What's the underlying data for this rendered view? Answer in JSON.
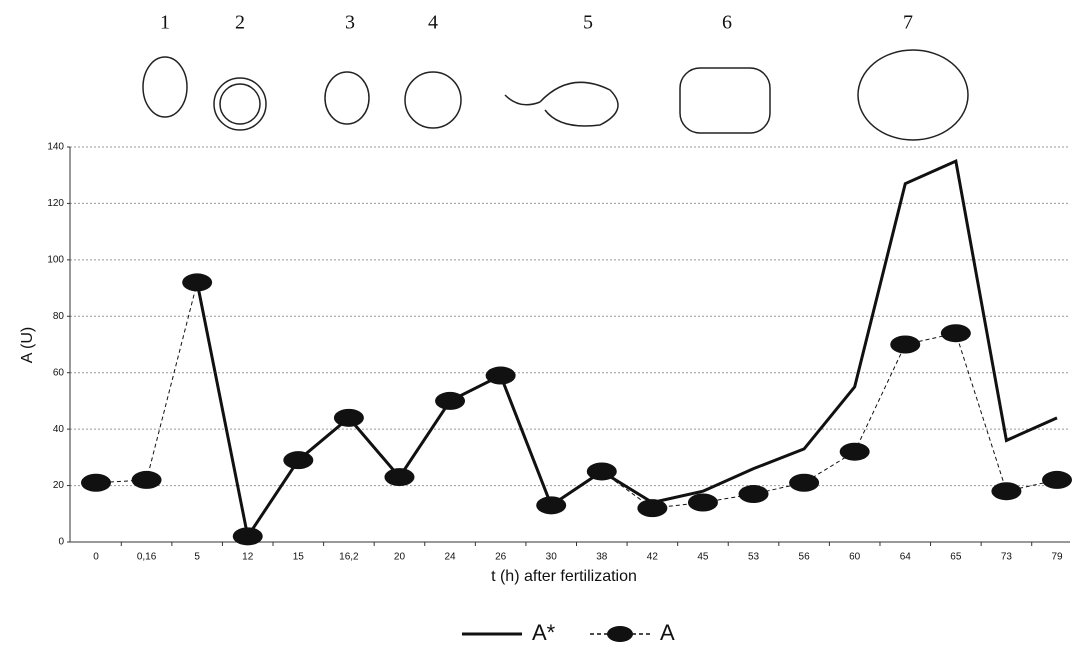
{
  "chart_data": {
    "type": "line",
    "stage_labels": [
      "1",
      "2",
      "3",
      "4",
      "5",
      "6",
      "7"
    ],
    "x_label": "t (h)  after fertilization",
    "y_label": "A (U)",
    "categories": [
      "0",
      "0,16",
      "5",
      "12",
      "15",
      "16,2",
      "20",
      "24",
      "26",
      "30",
      "38",
      "42",
      "45",
      "53",
      "56",
      "60",
      "64",
      "65",
      "73",
      "79"
    ],
    "series": [
      {
        "name": "A*",
        "color": "#111111",
        "style": "solid",
        "values": [
          null,
          null,
          92,
          2,
          29,
          44,
          23,
          50,
          59,
          13,
          25,
          14,
          18,
          26,
          33,
          55,
          127,
          135,
          36,
          44
        ]
      },
      {
        "name": "A",
        "color": "#111111",
        "style": "dashed-marker",
        "values": [
          21,
          22,
          92,
          2,
          29,
          44,
          23,
          50,
          59,
          13,
          25,
          12,
          14,
          17,
          21,
          32,
          70,
          74,
          18,
          22
        ]
      }
    ],
    "ylim": [
      0,
      140
    ],
    "yticks": [
      0,
      20,
      40,
      60,
      80,
      100,
      120,
      140
    ],
    "grid": true
  }
}
